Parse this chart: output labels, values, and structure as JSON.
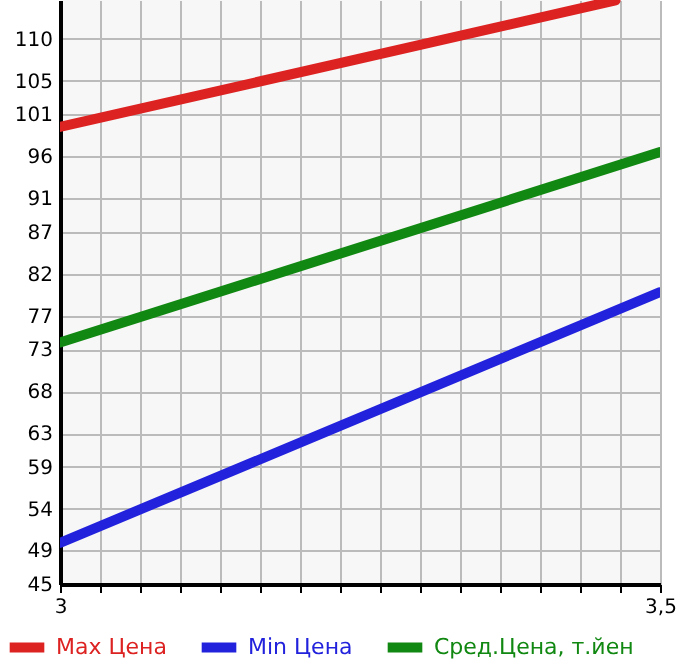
{
  "chart_data": {
    "type": "line",
    "xlim": [
      3,
      3.5
    ],
    "xticks": [
      {
        "value": 3,
        "label": "3"
      },
      {
        "value": 3.0333,
        "label": null
      },
      {
        "value": 3.0667,
        "label": null
      },
      {
        "value": 3.1,
        "label": null
      },
      {
        "value": 3.1333,
        "label": null
      },
      {
        "value": 3.1667,
        "label": null
      },
      {
        "value": 3.2,
        "label": null
      },
      {
        "value": 3.2333,
        "label": null
      },
      {
        "value": 3.2667,
        "label": null
      },
      {
        "value": 3.3,
        "label": null
      },
      {
        "value": 3.3333,
        "label": null
      },
      {
        "value": 3.3667,
        "label": null
      },
      {
        "value": 3.4,
        "label": null
      },
      {
        "value": 3.4333,
        "label": null
      },
      {
        "value": 3.4667,
        "label": null
      },
      {
        "value": 3.5,
        "label": "3,5"
      }
    ],
    "ylim": [
      45,
      114.64
    ],
    "yticks": [
      45,
      49,
      54,
      59,
      63,
      68,
      73,
      77,
      82,
      87,
      91,
      96,
      101,
      105,
      110
    ],
    "grid": true,
    "legend": "bottom",
    "line_style": "solid",
    "marker": "none",
    "series": [
      {
        "name": "Max Цена",
        "color": "#dd2222",
        "x": [
          3,
          3.463
        ],
        "values": [
          99.5,
          114.6
        ]
      },
      {
        "name": "Min Цена",
        "color": "#2222dd",
        "x": [
          3,
          3.5
        ],
        "values": [
          49.9,
          79.8
        ]
      },
      {
        "name": "Сред.Цена, т.йен",
        "color": "#118811",
        "x": [
          3,
          3.5
        ],
        "values": [
          73.8,
          96.5
        ]
      }
    ]
  }
}
